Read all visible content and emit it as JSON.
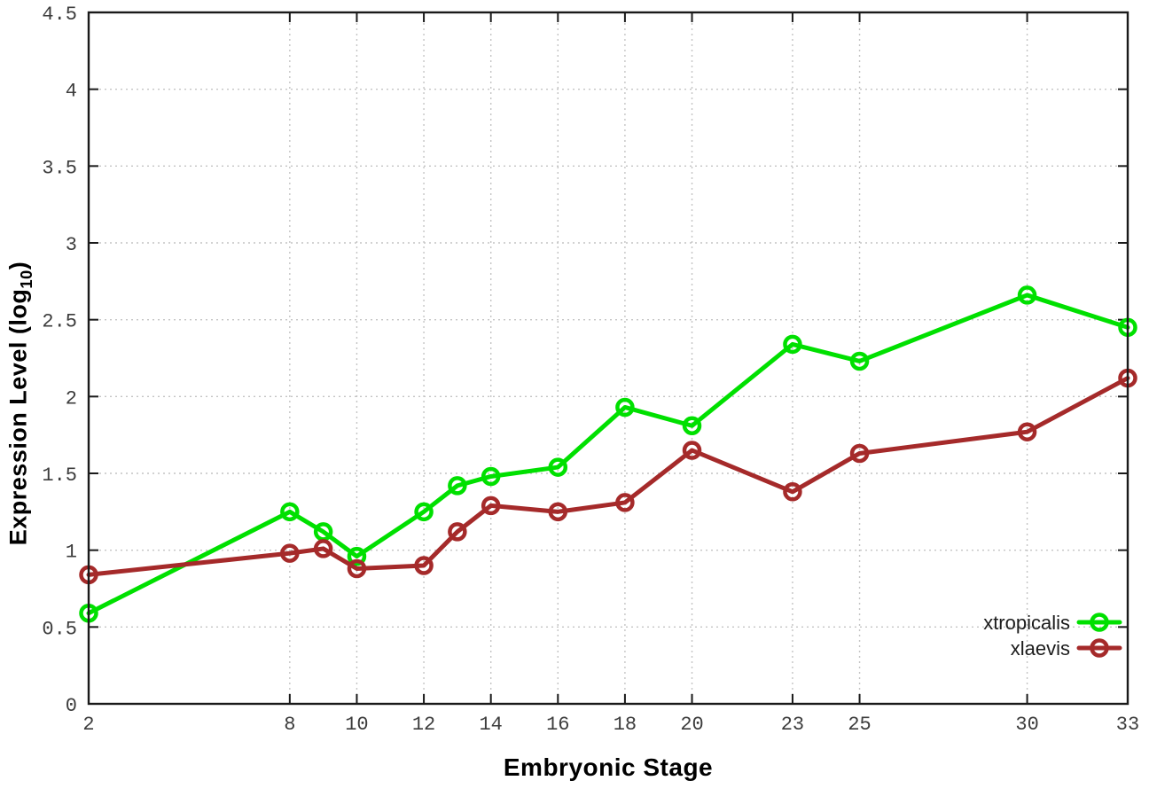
{
  "chart_data": {
    "type": "line",
    "title": "",
    "xlabel": "Embryonic Stage",
    "ylabel": "Expression Level (log10)",
    "ylabel_parts": {
      "pre": "Expression Level (log",
      "sub": "10",
      "post": ")"
    },
    "xlim": [
      2,
      33
    ],
    "ylim": [
      0,
      4.5
    ],
    "x_ticks": [
      2,
      8,
      10,
      12,
      14,
      16,
      18,
      20,
      23,
      25,
      30,
      33
    ],
    "x_tick_labels": [
      "2",
      "8",
      "10",
      "12",
      "14",
      "16",
      "18",
      "20",
      "23",
      "25",
      "30",
      "33"
    ],
    "y_ticks": [
      0,
      0.5,
      1,
      1.5,
      2,
      2.5,
      3,
      3.5,
      4,
      4.5
    ],
    "y_tick_labels": [
      "0",
      "0.5",
      "1",
      "1.5",
      "2",
      "2.5",
      "3",
      "3.5",
      "4",
      "4.5"
    ],
    "grid": true,
    "legend_position": "bottom-right",
    "x": [
      2,
      8,
      9,
      10,
      12,
      13,
      14,
      16,
      18,
      20,
      23,
      25,
      30,
      33
    ],
    "series": [
      {
        "name": "xtropicalis",
        "color": "#00e000",
        "marker": "open-circle",
        "values": [
          0.59,
          1.25,
          1.12,
          0.96,
          1.25,
          1.42,
          1.48,
          1.54,
          1.93,
          1.81,
          2.34,
          2.23,
          2.66,
          2.45
        ]
      },
      {
        "name": "xlaevis",
        "color": "#a52a2a",
        "marker": "open-circle",
        "values": [
          0.84,
          0.98,
          1.01,
          0.88,
          0.9,
          1.12,
          1.29,
          1.25,
          1.31,
          1.65,
          1.38,
          1.63,
          1.77,
          2.12
        ]
      }
    ],
    "colors": {
      "axis": "#1a1a1a",
      "grid": "#c4c4c4",
      "tick_text": "#3c3c3c",
      "legend_text": "#1c1c1c",
      "background": "#ffffff"
    }
  }
}
